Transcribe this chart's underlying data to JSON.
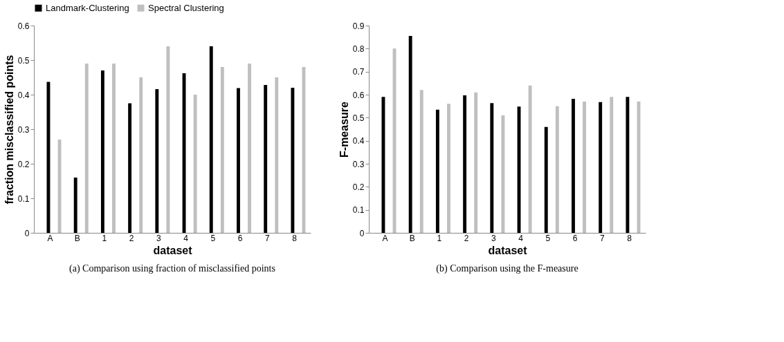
{
  "chart_data": [
    {
      "type": "bar",
      "xlabel": "dataset",
      "ylabel": "fraction misclassified points",
      "categories": [
        "A",
        "B",
        "1",
        "2",
        "3",
        "4",
        "5",
        "6",
        "7",
        "8"
      ],
      "series": [
        {
          "name": "Landmark-Clustering",
          "color": "#000000",
          "values": [
            0.437,
            0.16,
            0.47,
            0.375,
            0.416,
            0.462,
            0.54,
            0.419,
            0.428,
            0.42
          ]
        },
        {
          "name": "Spectral Clustering",
          "color": "#bfbfbf",
          "values": [
            0.27,
            0.49,
            0.49,
            0.45,
            0.54,
            0.4,
            0.48,
            0.49,
            0.45,
            0.48
          ]
        }
      ],
      "ylim": [
        0,
        0.6
      ],
      "yticks": [
        {
          "value": 0,
          "label": "0"
        },
        0.1,
        0.2,
        0.3,
        0.4,
        0.5,
        0.6
      ],
      "grid": false,
      "legend": "top",
      "annotations": [
        "(a) Comparison using fraction of misclassified points"
      ]
    },
    {
      "type": "bar",
      "xlabel": "dataset",
      "ylabel": "F-measure",
      "categories": [
        "A",
        "B",
        "1",
        "2",
        "3",
        "4",
        "5",
        "6",
        "7",
        "8"
      ],
      "series": [
        {
          "color": "#000000",
          "values": [
            0.59,
            0.855,
            0.535,
            0.597,
            0.563,
            0.548,
            0.46,
            0.582,
            0.568,
            0.59
          ]
        },
        {
          "color": "#bfbfbf",
          "values": [
            0.8,
            0.62,
            0.56,
            0.61,
            0.51,
            0.64,
            0.55,
            0.57,
            0.59,
            0.57
          ]
        }
      ],
      "ylim": [
        0,
        0.9
      ],
      "yticks": [
        {
          "value": 0,
          "label": "0"
        },
        0.1,
        0.2,
        0.3,
        0.4,
        0.5,
        0.6,
        0.7,
        0.8,
        0.9
      ],
      "grid": false,
      "legend": false,
      "annotations": [
        "(b) Comparison using the F-measure"
      ]
    }
  ]
}
